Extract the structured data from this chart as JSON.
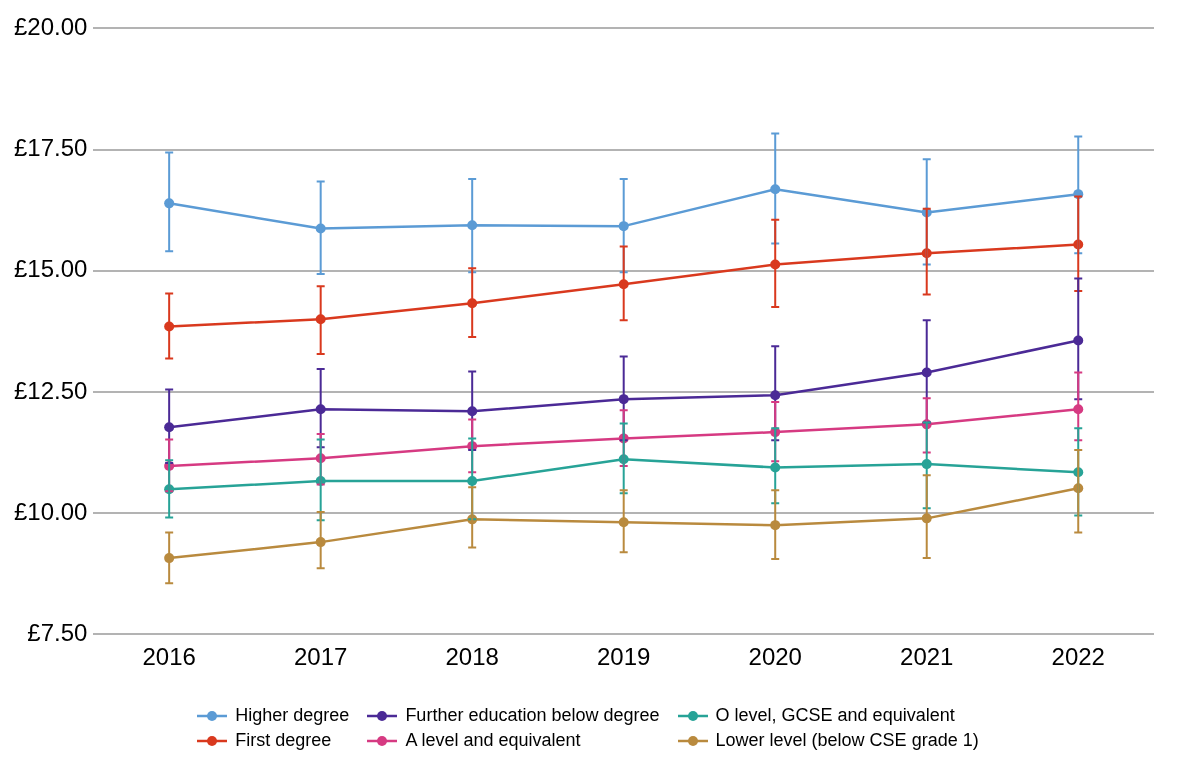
{
  "chart_data": {
    "type": "line",
    "categories": [
      "2016",
      "2017",
      "2018",
      "2019",
      "2020",
      "2021",
      "2022"
    ],
    "series": [
      {
        "name": "Higher degree",
        "color": "#5b9bd5",
        "values": [
          16.39,
          15.87,
          15.94,
          15.92,
          16.68,
          16.2,
          16.58
        ],
        "errors": [
          [
            15.4,
            17.44
          ],
          [
            14.93,
            16.84
          ],
          [
            14.97,
            16.89
          ],
          [
            14.97,
            16.89
          ],
          [
            15.56,
            17.83
          ],
          [
            15.13,
            17.3
          ],
          [
            15.36,
            17.77
          ]
        ]
      },
      {
        "name": "First degree",
        "color": "#d9391e",
        "values": [
          13.85,
          14.0,
          14.33,
          14.72,
          15.13,
          15.36,
          15.54
        ],
        "errors": [
          [
            13.19,
            14.53
          ],
          [
            13.28,
            14.68
          ],
          [
            13.63,
            15.05
          ],
          [
            13.98,
            15.5
          ],
          [
            14.25,
            16.05
          ],
          [
            14.51,
            16.28
          ],
          [
            14.58,
            16.53
          ]
        ]
      },
      {
        "name": "Further education below degree",
        "color": "#4b2a96",
        "values": [
          11.77,
          12.14,
          12.1,
          12.35,
          12.43,
          12.9,
          13.56
        ],
        "errors": [
          [
            11.03,
            12.55
          ],
          [
            11.36,
            12.97
          ],
          [
            11.3,
            12.92
          ],
          [
            11.5,
            13.23
          ],
          [
            11.5,
            13.44
          ],
          [
            11.87,
            13.98
          ],
          [
            12.35,
            14.84
          ]
        ]
      },
      {
        "name": "A level and equivalent",
        "color": "#d63a82",
        "values": [
          10.97,
          11.13,
          11.38,
          11.54,
          11.67,
          11.83,
          12.14
        ],
        "errors": [
          [
            10.45,
            11.52
          ],
          [
            10.59,
            11.63
          ],
          [
            10.84,
            11.93
          ],
          [
            10.97,
            12.12
          ],
          [
            11.07,
            12.29
          ],
          [
            11.25,
            12.37
          ],
          [
            11.5,
            12.9
          ]
        ]
      },
      {
        "name": "O level, GCSE and equivalent",
        "color": "#27a397",
        "values": [
          10.49,
          10.66,
          10.66,
          11.11,
          10.94,
          11.01,
          10.84
        ],
        "errors": [
          [
            9.91,
            11.09
          ],
          [
            9.85,
            11.52
          ],
          [
            9.87,
            11.54
          ],
          [
            10.41,
            11.85
          ],
          [
            10.2,
            11.75
          ],
          [
            10.1,
            11.87
          ],
          [
            9.95,
            11.75
          ]
        ]
      },
      {
        "name": "Lower level (below CSE grade 1)",
        "color": "#b98a3e",
        "values": [
          9.07,
          9.4,
          9.87,
          9.81,
          9.75,
          9.89,
          10.51
        ],
        "errors": [
          [
            8.55,
            9.6
          ],
          [
            8.86,
            10.02
          ],
          [
            9.29,
            10.53
          ],
          [
            9.19,
            10.47
          ],
          [
            9.05,
            10.47
          ],
          [
            9.07,
            10.78
          ],
          [
            9.6,
            11.3
          ]
        ]
      }
    ],
    "ylim": [
      7.5,
      20
    ],
    "yticks": [
      {
        "value": 7.5,
        "label": "£7.50"
      },
      {
        "value": 10,
        "label": "£10.00"
      },
      {
        "value": 12.5,
        "label": "£12.50"
      },
      {
        "value": 15,
        "label": "£15.00"
      },
      {
        "value": 17.5,
        "label": "£17.50"
      },
      {
        "value": 20,
        "label": "£20.00"
      }
    ],
    "grid": "y",
    "legend": "bottom",
    "marker": "circle",
    "line_style": "solid"
  }
}
